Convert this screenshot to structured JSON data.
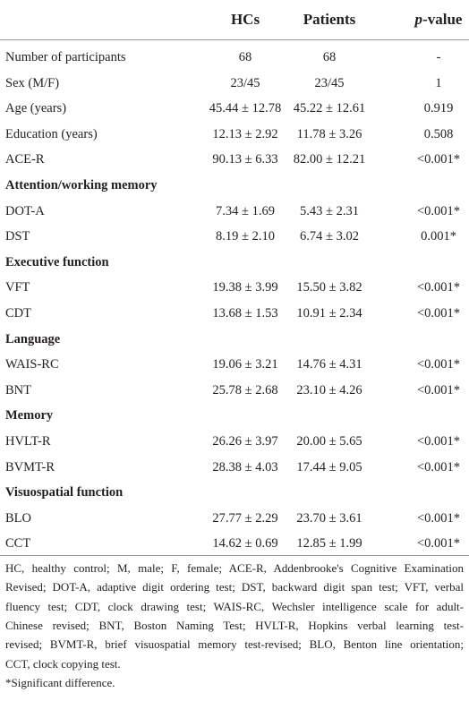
{
  "table": {
    "header": {
      "hcs": "HCs",
      "patients": "Patients",
      "p_value": {
        "italic": "p",
        "text": "-value"
      }
    },
    "rows": [
      {
        "label": "Number of participants",
        "hcs": "68",
        "patients": "68",
        "p": "-"
      },
      {
        "label": "Sex (M/F)",
        "hcs": "23/45",
        "patients": "23/45",
        "p": "1"
      },
      {
        "label": "Age (years)",
        "hcs": "45.44 ± 12.78",
        "patients": "45.22 ± 12.61",
        "p": "0.919"
      },
      {
        "label": "Education (years)",
        "hcs": "12.13 ± 2.92",
        "patients": "11.78 ± 3.26",
        "p": "0.508"
      },
      {
        "label": "ACE-R",
        "hcs": "90.13 ± 6.33",
        "patients": "82.00 ± 12.21",
        "p": "<0.001*"
      },
      {
        "section": "Attention/working memory"
      },
      {
        "label": "DOT-A",
        "hcs": "7.34 ± 1.69",
        "patients": "5.43 ± 2.31",
        "p": "<0.001*"
      },
      {
        "label": "DST",
        "hcs": "8.19 ± 2.10",
        "patients": "6.74 ± 3.02",
        "p": "0.001*"
      },
      {
        "section": "Executive function"
      },
      {
        "label": "VFT",
        "hcs": "19.38 ± 3.99",
        "patients": "15.50 ± 3.82",
        "p": "<0.001*"
      },
      {
        "label": "CDT",
        "hcs": "13.68 ± 1.53",
        "patients": "10.91 ± 2.34",
        "p": "<0.001*"
      },
      {
        "section": "Language"
      },
      {
        "label": "WAIS-RC",
        "hcs": "19.06 ± 3.21",
        "patients": "14.76 ± 4.31",
        "p": "<0.001*"
      },
      {
        "label": "BNT",
        "hcs": "25.78 ± 2.68",
        "patients": "23.10 ± 4.26",
        "p": "<0.001*"
      },
      {
        "section": "Memory"
      },
      {
        "label": "HVLT-R",
        "hcs": "26.26 ± 3.97",
        "patients": "20.00 ± 5.65",
        "p": "<0.001*"
      },
      {
        "label": "BVMT-R",
        "hcs": "28.38 ± 4.03",
        "patients": "17.44 ± 9.05",
        "p": "<0.001*"
      },
      {
        "section": "Visuospatial function"
      },
      {
        "label": "BLO",
        "hcs": "27.77 ± 2.29",
        "patients": "23.70 ± 3.61",
        "p": "<0.001*"
      },
      {
        "label": "CCT",
        "hcs": "14.62 ± 0.69",
        "patients": "12.85 ± 1.99",
        "p": "<0.001*"
      }
    ],
    "footnote_lines": [
      "HC, healthy control; M, male; F, female; ACE-R, Addenbrooke's Cognitive Examination",
      "Revised; DOT-A, adaptive digit ordering test; DST, backward digit span test; VFT, verbal",
      "fluency test; CDT, clock drawing test; WAIS-RC, Wechsler intelligence scale for adult-",
      "Chinese revised; BNT, Boston Naming Test; HVLT-R, Hopkins verbal learning test-",
      "revised; BVMT-R, brief visuospatial memory test-revised; BLO, Benton line orientation;",
      "CCT, clock copying test."
    ],
    "significance_note": "*Significant difference."
  }
}
